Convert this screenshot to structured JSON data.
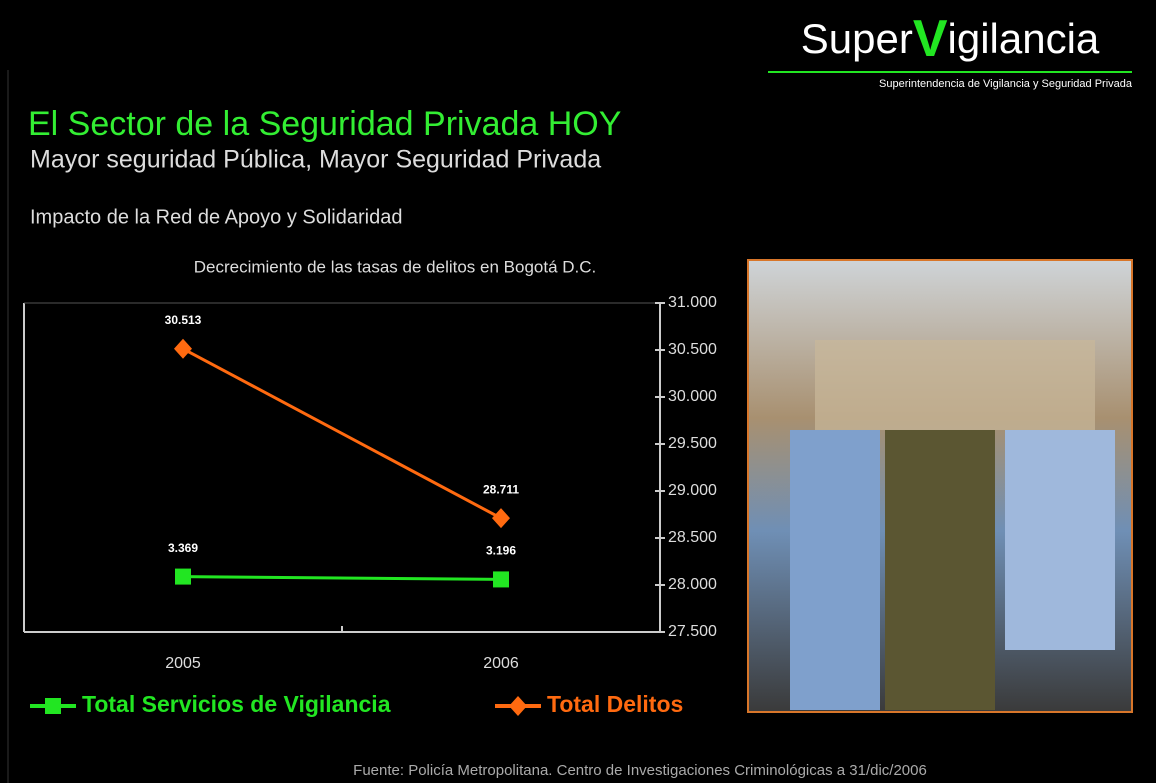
{
  "logo": {
    "prefix": "Super",
    "highlight": "V",
    "suffix": "igilancia",
    "tagline": "Superintendencia de Vigilancia y Seguridad Privada"
  },
  "heading": "El Sector de la Seguridad Privada HOY",
  "subheading": "Mayor seguridad Pública, Mayor Seguridad Privada",
  "section": "Impacto de la Red de Apoyo y Solidaridad",
  "footer": "Fuente: Policía Metropolitana. Centro de Investigaciones Criminológicas a 31/dic/2006",
  "chart_data": {
    "type": "line",
    "title": "Decrecimiento de las tasas de delitos en Bogotá D.C.",
    "categories": [
      "2005",
      "2006"
    ],
    "ylim": [
      0,
      20000
    ],
    "y2lim": [
      27500,
      31000
    ],
    "y2ticks": [
      {
        "value": 27500,
        "label": "27.500"
      },
      {
        "value": 28000,
        "label": "28.000"
      },
      {
        "value": 28500,
        "label": "28.500"
      },
      {
        "value": 29000,
        "label": "29.000"
      },
      {
        "value": 29500,
        "label": "29.500"
      },
      {
        "value": 30000,
        "label": "30.000"
      },
      {
        "value": 30500,
        "label": "30.500"
      },
      {
        "value": 31000,
        "label": "31.000"
      }
    ],
    "series": [
      {
        "name": "Total Servicios de Vigilancia",
        "color": "#22e622",
        "marker": "square",
        "values": [
          3369,
          3196
        ],
        "value_labels": [
          "3.369",
          "3.196"
        ]
      },
      {
        "name": "Total Delitos",
        "color": "#ff6a10",
        "marker": "diamond",
        "axis": "y2",
        "values": [
          30513,
          28711
        ],
        "value_labels": [
          "30.513",
          "28.711"
        ]
      }
    ]
  }
}
